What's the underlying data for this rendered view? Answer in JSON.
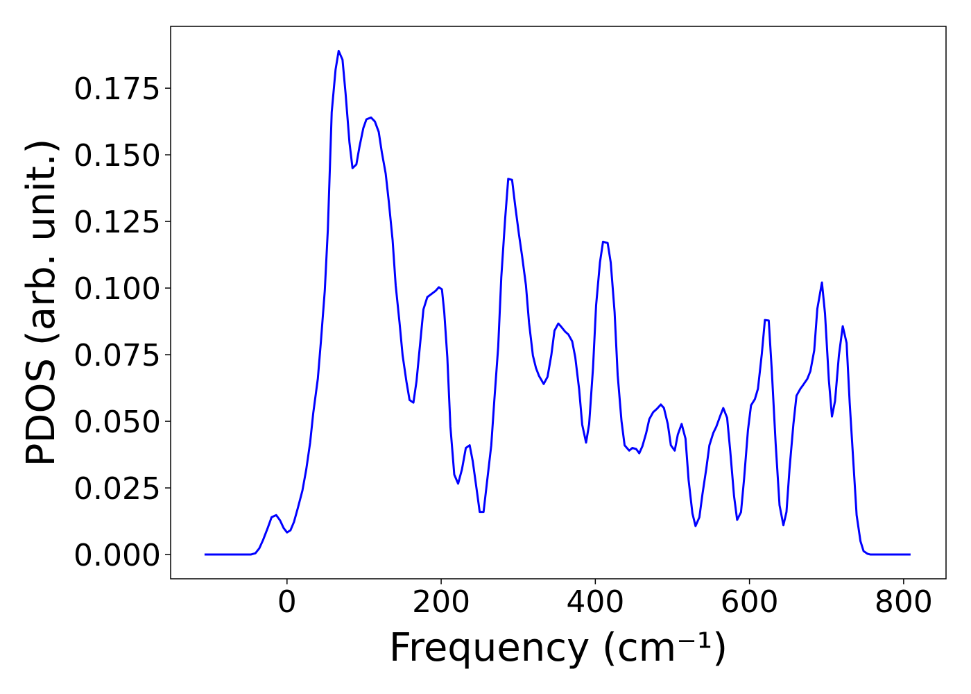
{
  "chart_data": {
    "type": "line",
    "xlabel": "Frequency (cm⁻¹)",
    "ylabel": "PDOS (arb. unit.)",
    "x": [
      -107,
      -47,
      -41,
      -36,
      -31,
      -25,
      -20,
      -14,
      -9,
      -4.5,
      0,
      4.5,
      9,
      14,
      20,
      25,
      30,
      34,
      40,
      44,
      49,
      53,
      58,
      63,
      67,
      72,
      76,
      81,
      85,
      90,
      94,
      99,
      103,
      109,
      114,
      119,
      123,
      128,
      132,
      137,
      141,
      146,
      150,
      155,
      159,
      164,
      168,
      173,
      177,
      182,
      187,
      193,
      197,
      201,
      204,
      208,
      212,
      217,
      222,
      227,
      232,
      237,
      241,
      246,
      250,
      255,
      259,
      265,
      269,
      274,
      278,
      283,
      287,
      292,
      296,
      301,
      305,
      310,
      314,
      319,
      323,
      327,
      333,
      338,
      343,
      347,
      352,
      356,
      361,
      365,
      370,
      374,
      379,
      383,
      388,
      392,
      397,
      401,
      406,
      410,
      416,
      420,
      425,
      429,
      434,
      438,
      444,
      448,
      453,
      457,
      461,
      466,
      470,
      475,
      480,
      485,
      489,
      494,
      498,
      503,
      507,
      512,
      517,
      521,
      526,
      530,
      535,
      539,
      544,
      548,
      553,
      557,
      562,
      566,
      571,
      575,
      580,
      584,
      589,
      593,
      598,
      602,
      607,
      611,
      616,
      620,
      625,
      629,
      634,
      639,
      644,
      648,
      652,
      657,
      661,
      666,
      670,
      675,
      679,
      684,
      688,
      694,
      698,
      703,
      707,
      711,
      716,
      721,
      726,
      730,
      735,
      739,
      744,
      748,
      753,
      757,
      809
    ],
    "series": [
      {
        "name": "PDOS",
        "color": "#0000ff",
        "values": [
          0,
          0,
          0.0005,
          0.0023,
          0.0055,
          0.01,
          0.014,
          0.0148,
          0.0128,
          0.01,
          0.0083,
          0.0091,
          0.0122,
          0.0174,
          0.024,
          0.032,
          0.042,
          0.053,
          0.066,
          0.08,
          0.099,
          0.122,
          0.166,
          0.182,
          0.189,
          0.1857,
          0.173,
          0.1547,
          0.145,
          0.1464,
          0.153,
          0.16,
          0.1633,
          0.164,
          0.1625,
          0.1586,
          0.151,
          0.143,
          0.1326,
          0.118,
          0.101,
          0.087,
          0.0747,
          0.0648,
          0.058,
          0.057,
          0.065,
          0.08,
          0.092,
          0.0966,
          0.0977,
          0.099,
          0.1003,
          0.0995,
          0.091,
          0.074,
          0.048,
          0.03,
          0.0266,
          0.032,
          0.04,
          0.041,
          0.035,
          0.0245,
          0.016,
          0.016,
          0.026,
          0.041,
          0.058,
          0.078,
          0.104,
          0.126,
          0.141,
          0.1406,
          0.131,
          0.12,
          0.112,
          0.101,
          0.087,
          0.0747,
          0.07,
          0.067,
          0.064,
          0.0667,
          0.075,
          0.084,
          0.0867,
          0.0854,
          0.0836,
          0.0826,
          0.08,
          0.074,
          0.062,
          0.0487,
          0.042,
          0.049,
          0.07,
          0.0935,
          0.1096,
          0.1174,
          0.1169,
          0.1096,
          0.091,
          0.0674,
          0.05,
          0.041,
          0.039,
          0.04,
          0.0396,
          0.038,
          0.0406,
          0.0456,
          0.0508,
          0.0534,
          0.0547,
          0.0563,
          0.055,
          0.049,
          0.041,
          0.039,
          0.045,
          0.049,
          0.0435,
          0.028,
          0.0154,
          0.0107,
          0.014,
          0.0227,
          0.0323,
          0.041,
          0.0456,
          0.048,
          0.052,
          0.055,
          0.0513,
          0.039,
          0.0219,
          0.013,
          0.0159,
          0.0284,
          0.0466,
          0.056,
          0.0583,
          0.0622,
          0.0753,
          0.088,
          0.0878,
          0.0688,
          0.0414,
          0.0185,
          0.011,
          0.016,
          0.0323,
          0.049,
          0.0596,
          0.0622,
          0.0638,
          0.0659,
          0.0688,
          0.0766,
          0.0922,
          0.1021,
          0.0904,
          0.0654,
          0.0518,
          0.0576,
          0.0747,
          0.0857,
          0.0794,
          0.057,
          0.0336,
          0.0148,
          0.005,
          0.0013,
          0.0003,
          0,
          0
        ]
      }
    ],
    "xlim": [
      -151,
      855
    ],
    "ylim": [
      -0.0091,
      0.1982
    ],
    "xticks": [
      0,
      200,
      400,
      600,
      800
    ],
    "yticks": [
      {
        "value": 0,
        "label": "0.000"
      },
      {
        "value": 0.025,
        "label": "0.025"
      },
      {
        "value": 0.05,
        "label": "0.050"
      },
      {
        "value": 0.075,
        "label": "0.075"
      },
      {
        "value": 0.1,
        "label": "0.100"
      },
      {
        "value": 0.125,
        "label": "0.125"
      },
      {
        "value": 0.15,
        "label": "0.150"
      },
      {
        "value": 0.175,
        "label": "0.175"
      }
    ],
    "grid": false
  }
}
